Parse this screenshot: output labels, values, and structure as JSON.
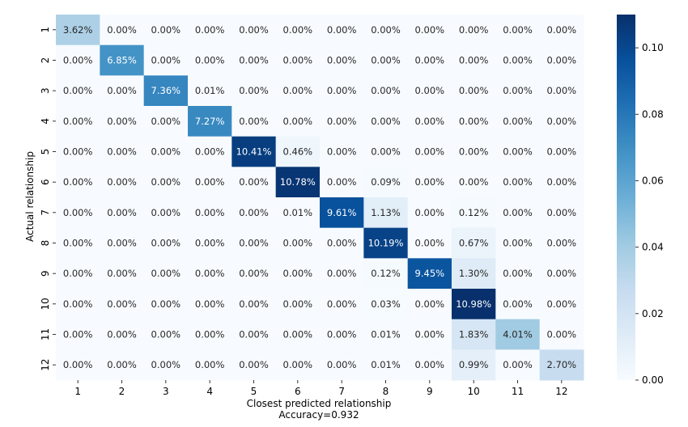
{
  "chart_data": {
    "type": "heatmap",
    "title": "",
    "xlabel": "Closest predicted relationship",
    "xlabel_note": "Accuracy=0.932",
    "ylabel": "Actual relationship",
    "x_categories": [
      "1",
      "2",
      "3",
      "4",
      "5",
      "6",
      "7",
      "8",
      "9",
      "10",
      "11",
      "12"
    ],
    "y_categories": [
      "1",
      "2",
      "3",
      "4",
      "5",
      "6",
      "7",
      "8",
      "9",
      "10",
      "11",
      "12"
    ],
    "values": [
      [
        0.0362,
        0,
        0,
        0,
        0,
        0,
        0,
        0,
        0,
        0,
        0,
        0
      ],
      [
        0,
        0.0685,
        0,
        0,
        0,
        0,
        0,
        0,
        0,
        0,
        0,
        0
      ],
      [
        0,
        0,
        0.0736,
        0.0001,
        0,
        0,
        0,
        0,
        0,
        0,
        0,
        0
      ],
      [
        0,
        0,
        0,
        0.0727,
        0,
        0,
        0,
        0,
        0,
        0,
        0,
        0
      ],
      [
        0,
        0,
        0,
        0,
        0.1041,
        0.0046,
        0,
        0,
        0,
        0,
        0,
        0
      ],
      [
        0,
        0,
        0,
        0,
        0,
        0.1078,
        0,
        0.0009,
        0,
        0,
        0,
        0
      ],
      [
        0,
        0,
        0,
        0,
        0,
        0.0001,
        0.0961,
        0.0113,
        0,
        0.0012,
        0,
        0
      ],
      [
        0,
        0,
        0,
        0,
        0,
        0,
        0,
        0.1019,
        0,
        0.0067,
        0,
        0
      ],
      [
        0,
        0,
        0,
        0,
        0,
        0,
        0,
        0.0012,
        0.0945,
        0.013,
        0,
        0
      ],
      [
        0,
        0,
        0,
        0,
        0,
        0,
        0,
        0.0003,
        0,
        0.1098,
        0,
        0
      ],
      [
        0,
        0,
        0,
        0,
        0,
        0,
        0,
        0.0001,
        0,
        0.0183,
        0.0401,
        0
      ],
      [
        0,
        0,
        0,
        0,
        0,
        0,
        0,
        0.0001,
        0,
        0.0099,
        0,
        0.027
      ]
    ],
    "cell_labels": [
      [
        "3.62%",
        "0.00%",
        "0.00%",
        "0.00%",
        "0.00%",
        "0.00%",
        "0.00%",
        "0.00%",
        "0.00%",
        "0.00%",
        "0.00%",
        "0.00%"
      ],
      [
        "0.00%",
        "6.85%",
        "0.00%",
        "0.00%",
        "0.00%",
        "0.00%",
        "0.00%",
        "0.00%",
        "0.00%",
        "0.00%",
        "0.00%",
        "0.00%"
      ],
      [
        "0.00%",
        "0.00%",
        "7.36%",
        "0.01%",
        "0.00%",
        "0.00%",
        "0.00%",
        "0.00%",
        "0.00%",
        "0.00%",
        "0.00%",
        "0.00%"
      ],
      [
        "0.00%",
        "0.00%",
        "0.00%",
        "7.27%",
        "0.00%",
        "0.00%",
        "0.00%",
        "0.00%",
        "0.00%",
        "0.00%",
        "0.00%",
        "0.00%"
      ],
      [
        "0.00%",
        "0.00%",
        "0.00%",
        "0.00%",
        "10.41%",
        "0.46%",
        "0.00%",
        "0.00%",
        "0.00%",
        "0.00%",
        "0.00%",
        "0.00%"
      ],
      [
        "0.00%",
        "0.00%",
        "0.00%",
        "0.00%",
        "0.00%",
        "10.78%",
        "0.00%",
        "0.09%",
        "0.00%",
        "0.00%",
        "0.00%",
        "0.00%"
      ],
      [
        "0.00%",
        "0.00%",
        "0.00%",
        "0.00%",
        "0.00%",
        "0.01%",
        "9.61%",
        "1.13%",
        "0.00%",
        "0.12%",
        "0.00%",
        "0.00%"
      ],
      [
        "0.00%",
        "0.00%",
        "0.00%",
        "0.00%",
        "0.00%",
        "0.00%",
        "0.00%",
        "10.19%",
        "0.00%",
        "0.67%",
        "0.00%",
        "0.00%"
      ],
      [
        "0.00%",
        "0.00%",
        "0.00%",
        "0.00%",
        "0.00%",
        "0.00%",
        "0.00%",
        "0.12%",
        "9.45%",
        "1.30%",
        "0.00%",
        "0.00%"
      ],
      [
        "0.00%",
        "0.00%",
        "0.00%",
        "0.00%",
        "0.00%",
        "0.00%",
        "0.00%",
        "0.03%",
        "0.00%",
        "10.98%",
        "0.00%",
        "0.00%"
      ],
      [
        "0.00%",
        "0.00%",
        "0.00%",
        "0.00%",
        "0.00%",
        "0.00%",
        "0.00%",
        "0.01%",
        "0.00%",
        "1.83%",
        "4.01%",
        "0.00%"
      ],
      [
        "0.00%",
        "0.00%",
        "0.00%",
        "0.00%",
        "0.00%",
        "0.00%",
        "0.00%",
        "0.01%",
        "0.00%",
        "0.99%",
        "0.00%",
        "2.70%"
      ]
    ],
    "colorbar": {
      "range": [
        0,
        0.11
      ],
      "ticks": [
        0.0,
        0.02,
        0.04,
        0.06,
        0.08,
        0.1
      ],
      "tick_labels": [
        "0.00",
        "0.02",
        "0.04",
        "0.06",
        "0.08",
        "0.10"
      ],
      "colormap": "Blues",
      "low_color": "#f7fbff",
      "high_color": "#08306b"
    },
    "grid": false,
    "legend": "colorbar-right"
  }
}
